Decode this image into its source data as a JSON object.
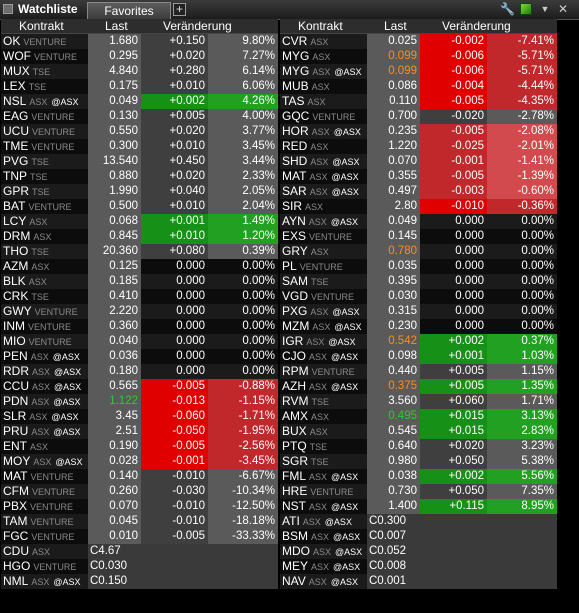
{
  "window": {
    "title": "Watchliste",
    "tab": "Favorites",
    "tab_add": "+",
    "close": "✕"
  },
  "colors": {
    "up": "#21a021",
    "down": "#e00000",
    "up_light": "#179017",
    "down_light": "#c0282c",
    "orange": "#ff8c1a",
    "green_text": "#28d028"
  },
  "columns": {
    "contract": "Kontrakt",
    "last": "Last",
    "change": "Veränderung"
  },
  "left_rows": [
    {
      "sym": "OK",
      "ex": "VENTURE",
      "last": "1.680",
      "chg": "+0.150",
      "pct": "9.80%",
      "c": "up"
    },
    {
      "sym": "WOF",
      "ex": "VENTURE",
      "last": "0.295",
      "chg": "+0.020",
      "pct": "7.27%",
      "c": "up"
    },
    {
      "sym": "MUX",
      "ex": "TSE",
      "last": "4.840",
      "chg": "+0.280",
      "pct": "6.14%",
      "c": "up"
    },
    {
      "sym": "LEX",
      "ex": "TSE",
      "last": "0.175",
      "chg": "+0.010",
      "pct": "6.06%",
      "c": "up"
    },
    {
      "sym": "NSL",
      "ex": "ASX",
      "ax": "@ASX",
      "last": "0.049",
      "chg": "+0.002",
      "pct": "4.26%",
      "c": "up-light"
    },
    {
      "sym": "EAG",
      "ex": "VENTURE",
      "last": "0.130",
      "chg": "+0.005",
      "pct": "4.00%",
      "c": "up"
    },
    {
      "sym": "UCU",
      "ex": "VENTURE",
      "last": "0.550",
      "chg": "+0.020",
      "pct": "3.77%",
      "c": "up"
    },
    {
      "sym": "TME",
      "ex": "VENTURE",
      "last": "0.300",
      "chg": "+0.010",
      "pct": "3.45%",
      "c": "up"
    },
    {
      "sym": "PVG",
      "ex": "TSE",
      "last": "13.540",
      "chg": "+0.450",
      "pct": "3.44%",
      "c": "up"
    },
    {
      "sym": "TNP",
      "ex": "TSE",
      "last": "0.880",
      "chg": "+0.020",
      "pct": "2.33%",
      "c": "up"
    },
    {
      "sym": "GPR",
      "ex": "TSE",
      "last": "1.990",
      "chg": "+0.040",
      "pct": "2.05%",
      "c": "up"
    },
    {
      "sym": "BAT",
      "ex": "VENTURE",
      "last": "0.500",
      "chg": "+0.010",
      "pct": "2.04%",
      "c": "up"
    },
    {
      "sym": "LCY",
      "ex": "ASX",
      "last": "0.068",
      "chg": "+0.001",
      "pct": "1.49%",
      "c": "up-light"
    },
    {
      "sym": "DRM",
      "ex": "ASX",
      "last": "0.845",
      "chg": "+0.010",
      "pct": "1.20%",
      "c": "up-light"
    },
    {
      "sym": "THO",
      "ex": "TSE",
      "last": "20.360",
      "chg": "+0.080",
      "pct": "0.39%",
      "c": "up"
    },
    {
      "sym": "AZM",
      "ex": "ASX",
      "last": "0.125",
      "chg": "0.000",
      "pct": "0.00%",
      "c": "flat"
    },
    {
      "sym": "BLK",
      "ex": "ASX",
      "last": "0.185",
      "chg": "0.000",
      "pct": "0.00%",
      "c": "flat"
    },
    {
      "sym": "CRK",
      "ex": "TSE",
      "last": "0.410",
      "chg": "0.000",
      "pct": "0.00%",
      "c": "flat"
    },
    {
      "sym": "GWY",
      "ex": "VENTURE",
      "last": "2.220",
      "chg": "0.000",
      "pct": "0.00%",
      "c": "flat"
    },
    {
      "sym": "INM",
      "ex": "VENTURE",
      "last": "0.360",
      "chg": "0.000",
      "pct": "0.00%",
      "c": "flat"
    },
    {
      "sym": "MIO",
      "ex": "VENTURE",
      "last": "0.040",
      "chg": "0.000",
      "pct": "0.00%",
      "c": "flat"
    },
    {
      "sym": "PEN",
      "ex": "ASX",
      "ax": "@ASX",
      "last": "0.036",
      "chg": "0.000",
      "pct": "0.00%",
      "c": "flat"
    },
    {
      "sym": "RDR",
      "ex": "ASX",
      "ax": "@ASX",
      "last": "0.180",
      "chg": "0.000",
      "pct": "0.00%",
      "c": "flat"
    },
    {
      "sym": "CCU",
      "ex": "ASX",
      "ax": "@ASX",
      "last": "0.565",
      "chg": "-0.005",
      "pct": "-0.88%",
      "c": "down"
    },
    {
      "sym": "PDN",
      "ex": "ASX",
      "ax": "@ASX",
      "last": "1.122",
      "chg": "-0.013",
      "pct": "-1.15%",
      "c": "down",
      "lastc": "green"
    },
    {
      "sym": "SLR",
      "ex": "ASX",
      "ax": "@ASX",
      "last": "3.45",
      "chg": "-0.060",
      "pct": "-1.71%",
      "c": "down"
    },
    {
      "sym": "PRU",
      "ex": "ASX",
      "ax": "@ASX",
      "last": "2.51",
      "chg": "-0.050",
      "pct": "-1.95%",
      "c": "down"
    },
    {
      "sym": "ENT",
      "ex": "ASX",
      "last": "0.190",
      "chg": "-0.005",
      "pct": "-2.56%",
      "c": "down"
    },
    {
      "sym": "MOY",
      "ex": "ASX",
      "ax": "@ASX",
      "last": "0.028",
      "chg": "-0.001",
      "pct": "-3.45%",
      "c": "down"
    },
    {
      "sym": "MAT",
      "ex": "VENTURE",
      "last": "0.140",
      "chg": "-0.010",
      "pct": "-6.67%",
      "c": "neg"
    },
    {
      "sym": "CFM",
      "ex": "VENTURE",
      "last": "0.260",
      "chg": "-0.030",
      "pct": "-10.34%",
      "c": "neg"
    },
    {
      "sym": "PBX",
      "ex": "VENTURE",
      "last": "0.070",
      "chg": "-0.010",
      "pct": "-12.50%",
      "c": "neg"
    },
    {
      "sym": "TAM",
      "ex": "VENTURE",
      "last": "0.045",
      "chg": "-0.010",
      "pct": "-18.18%",
      "c": "neg"
    },
    {
      "sym": "FGC",
      "ex": "VENTURE",
      "last": "0.010",
      "chg": "-0.005",
      "pct": "-33.33%",
      "c": "neg"
    },
    {
      "sym": "CDU",
      "ex": "ASX",
      "last": "C4.67",
      "c": "close"
    },
    {
      "sym": "HGO",
      "ex": "VENTURE",
      "last": "C0.030",
      "c": "close"
    },
    {
      "sym": "NML",
      "ex": "ASX",
      "ax": "@ASX",
      "last": "C0.150",
      "c": "close"
    }
  ],
  "right_rows": [
    {
      "sym": "CVR",
      "ex": "ASX",
      "last": "0.025",
      "chg": "-0.002",
      "pct": "-7.41%",
      "c": "down"
    },
    {
      "sym": "MYG",
      "ex": "ASX",
      "last": "0.099",
      "chg": "-0.006",
      "pct": "-5.71%",
      "c": "down",
      "lastc": "orange"
    },
    {
      "sym": "MYG",
      "ex": "ASX",
      "ax": "@ASX",
      "last": "0.099",
      "chg": "-0.006",
      "pct": "-5.71%",
      "c": "down",
      "lastc": "orange"
    },
    {
      "sym": "MUB",
      "ex": "ASX",
      "last": "0.086",
      "chg": "-0.004",
      "pct": "-4.44%",
      "c": "down"
    },
    {
      "sym": "TAS",
      "ex": "ASX",
      "last": "0.110",
      "chg": "-0.005",
      "pct": "-4.35%",
      "c": "down"
    },
    {
      "sym": "GQC",
      "ex": "VENTURE",
      "last": "0.700",
      "chg": "-0.020",
      "pct": "-2.78%",
      "c": "neg"
    },
    {
      "sym": "HOR",
      "ex": "ASX",
      "ax": "@ASX",
      "last": "0.235",
      "chg": "-0.005",
      "pct": "-2.08%",
      "c": "down-light"
    },
    {
      "sym": "RED",
      "ex": "ASX",
      "last": "1.220",
      "chg": "-0.025",
      "pct": "-2.01%",
      "c": "down-light"
    },
    {
      "sym": "SHD",
      "ex": "ASX",
      "ax": "@ASX",
      "last": "0.070",
      "chg": "-0.001",
      "pct": "-1.41%",
      "c": "down-light"
    },
    {
      "sym": "MAT",
      "ex": "ASX",
      "ax": "@ASX",
      "last": "0.355",
      "chg": "-0.005",
      "pct": "-1.39%",
      "c": "down-light"
    },
    {
      "sym": "SAR",
      "ex": "ASX",
      "ax": "@ASX",
      "last": "0.497",
      "chg": "-0.003",
      "pct": "-0.60%",
      "c": "down-light"
    },
    {
      "sym": "SIR",
      "ex": "ASX",
      "last": "2.80",
      "chg": "-0.010",
      "pct": "-0.36%",
      "c": "down"
    },
    {
      "sym": "AYN",
      "ex": "ASX",
      "ax": "@ASX",
      "last": "0.049",
      "chg": "0.000",
      "pct": "0.00%",
      "c": "flat"
    },
    {
      "sym": "EXS",
      "ex": "VENTURE",
      "last": "0.145",
      "chg": "0.000",
      "pct": "0.00%",
      "c": "flat"
    },
    {
      "sym": "GRY",
      "ex": "ASX",
      "last": "0.780",
      "chg": "0.000",
      "pct": "0.00%",
      "c": "flat",
      "lastc": "orange"
    },
    {
      "sym": "PL",
      "ex": "VENTURE",
      "last": "0.035",
      "chg": "0.000",
      "pct": "0.00%",
      "c": "flat"
    },
    {
      "sym": "SAM",
      "ex": "TSE",
      "last": "0.395",
      "chg": "0.000",
      "pct": "0.00%",
      "c": "flat"
    },
    {
      "sym": "VGD",
      "ex": "VENTURE",
      "last": "0.030",
      "chg": "0.000",
      "pct": "0.00%",
      "c": "flat"
    },
    {
      "sym": "PXG",
      "ex": "ASX",
      "ax": "@ASX",
      "last": "0.315",
      "chg": "0.000",
      "pct": "0.00%",
      "c": "flat"
    },
    {
      "sym": "MZM",
      "ex": "ASX",
      "ax": "@ASX",
      "last": "0.230",
      "chg": "0.000",
      "pct": "0.00%",
      "c": "flat"
    },
    {
      "sym": "IGR",
      "ex": "ASX",
      "ax": "@ASX",
      "last": "0.542",
      "chg": "+0.002",
      "pct": "0.37%",
      "c": "up-light",
      "lastc": "orange"
    },
    {
      "sym": "CJO",
      "ex": "ASX",
      "ax": "@ASX",
      "last": "0.098",
      "chg": "+0.001",
      "pct": "1.03%",
      "c": "up-light"
    },
    {
      "sym": "RPM",
      "ex": "VENTURE",
      "last": "0.440",
      "chg": "+0.005",
      "pct": "1.15%",
      "c": "up"
    },
    {
      "sym": "AZH",
      "ex": "ASX",
      "ax": "@ASX",
      "last": "0.375",
      "chg": "+0.005",
      "pct": "1.35%",
      "c": "up-light",
      "lastc": "orange"
    },
    {
      "sym": "RVM",
      "ex": "TSE",
      "last": "3.560",
      "chg": "+0.060",
      "pct": "1.71%",
      "c": "up"
    },
    {
      "sym": "AMX",
      "ex": "ASX",
      "last": "0.495",
      "chg": "+0.015",
      "pct": "3.13%",
      "c": "up-light",
      "lastc": "green"
    },
    {
      "sym": "BUX",
      "ex": "ASX",
      "last": "0.545",
      "chg": "+0.015",
      "pct": "2.83%",
      "c": "up-light"
    },
    {
      "sym": "PTQ",
      "ex": "TSE",
      "last": "0.640",
      "chg": "+0.020",
      "pct": "3.23%",
      "c": "up"
    },
    {
      "sym": "SGR",
      "ex": "TSE",
      "last": "0.980",
      "chg": "+0.050",
      "pct": "5.38%",
      "c": "up"
    },
    {
      "sym": "FML",
      "ex": "ASX",
      "ax": "@ASX",
      "last": "0.038",
      "chg": "+0.002",
      "pct": "5.56%",
      "c": "up-light"
    },
    {
      "sym": "HRE",
      "ex": "VENTURE",
      "last": "0.730",
      "chg": "+0.050",
      "pct": "7.35%",
      "c": "up"
    },
    {
      "sym": "NST",
      "ex": "ASX",
      "ax": "@ASX",
      "last": "1.400",
      "chg": "+0.115",
      "pct": "8.95%",
      "c": "up-light"
    },
    {
      "sym": "ATI",
      "ex": "ASX",
      "ax": "@ASX",
      "last": "C0.300",
      "c": "close"
    },
    {
      "sym": "BSM",
      "ex": "ASX",
      "ax": "@ASX",
      "last": "C0.007",
      "c": "close"
    },
    {
      "sym": "MDO",
      "ex": "ASX",
      "ax": "@ASX",
      "last": "C0.052",
      "c": "close"
    },
    {
      "sym": "MEY",
      "ex": "ASX",
      "ax": "@ASX",
      "last": "C0.008",
      "c": "close"
    },
    {
      "sym": "NAV",
      "ex": "ASX",
      "ax": "@ASX",
      "last": "C0.001",
      "c": "close"
    }
  ]
}
